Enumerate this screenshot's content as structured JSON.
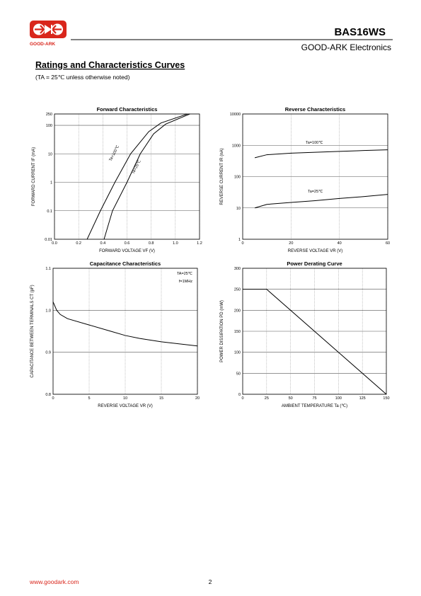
{
  "header": {
    "logo_text": "GOOD-ARK",
    "part_number": "BAS16WS",
    "company": "GOOD-ARK Electronics"
  },
  "section": {
    "title": "Ratings and Characteristics Curves",
    "note": "(TA = 25℃ unless otherwise noted)"
  },
  "footer": {
    "url": "www.goodark.com",
    "page": "2"
  },
  "chart_data": [
    {
      "type": "line",
      "title": "Forward Characteristics",
      "x_label": "FORWARD VOLTAGE  VF  (V)",
      "y_label": "FORWARD CURRENT  IF  (mA)",
      "log_y": true,
      "grid": true,
      "xlim": [
        0,
        1.2
      ],
      "xticks": [
        {
          "value": 0,
          "label": "0.0"
        },
        0.2,
        0.4,
        0.6,
        0.8,
        {
          "value": 1,
          "label": "1.0"
        },
        1.2
      ],
      "ylim": [
        0.01,
        250
      ],
      "yticks": [
        0.01,
        0.1,
        1,
        10,
        100,
        250
      ],
      "series": [
        {
          "name": "Ta=100℃",
          "color": "#000000",
          "x": [
            0.27,
            0.38,
            0.5,
            0.63,
            0.78,
            0.88,
            1.1
          ],
          "values": [
            0.01,
            0.1,
            1,
            10,
            60,
            120,
            250
          ]
        },
        {
          "name": "Ta=25℃",
          "color": "#000000",
          "x": [
            0.41,
            0.48,
            0.6,
            0.71,
            0.82,
            0.92,
            1.12
          ],
          "values": [
            0.01,
            0.1,
            1,
            10,
            50,
            110,
            250
          ]
        }
      ]
    },
    {
      "type": "line",
      "title": "Reverse Characteristics",
      "x_label": "REVERSE VOLTAGE  VR  (V)",
      "y_label": "REVERSE CURRENT  IR  (nA)",
      "log_y": true,
      "grid": true,
      "xlim": [
        0,
        60
      ],
      "xticks": [
        0,
        20,
        40,
        60
      ],
      "ylim": [
        1,
        10000
      ],
      "yticks": [
        1,
        10,
        100,
        1000,
        10000
      ],
      "series": [
        {
          "name": "Ta=100℃",
          "color": "#000000",
          "x": [
            5,
            10,
            20,
            30,
            40,
            50,
            60
          ],
          "values": [
            400,
            500,
            560,
            600,
            640,
            680,
            720
          ]
        },
        {
          "name": "Ta=25℃",
          "color": "#000000",
          "x": [
            5,
            10,
            20,
            30,
            40,
            50,
            60
          ],
          "values": [
            10,
            13,
            15,
            17,
            20,
            23,
            27
          ]
        }
      ]
    },
    {
      "type": "line",
      "title": "Capacitance Characteristics",
      "x_label": "REVERSE VOLTAGE  VR  (V)",
      "y_label": "CAPACITANCE BETWEEN TERMINALS  CT  (pF)",
      "log_y": false,
      "grid": true,
      "annotations": [
        "TA=25℃",
        "f=1MHz"
      ],
      "xlim": [
        0,
        20
      ],
      "xticks": [
        0,
        5,
        10,
        15,
        20
      ],
      "ylim": [
        0.8,
        1.1
      ],
      "yticks": [
        0.8,
        0.9,
        {
          "value": 1,
          "label": "1.0"
        },
        1.1
      ],
      "series": [
        {
          "name": "Capacitance",
          "color": "#000000",
          "x": [
            0,
            0.5,
            1,
            2,
            5,
            8,
            10,
            12,
            15,
            20
          ],
          "values": [
            1.02,
            1.0,
            0.99,
            0.98,
            0.965,
            0.95,
            0.94,
            0.933,
            0.925,
            0.915
          ]
        }
      ]
    },
    {
      "type": "line",
      "title": "Power Derating Curve",
      "x_label": "AMBIENT TEMPERATURE  Ta  (℃)",
      "y_label": "POWER DISSIPATION  PD  (mW)",
      "log_y": false,
      "grid": true,
      "xlim": [
        0,
        150
      ],
      "xticks": [
        0,
        25,
        50,
        75,
        100,
        125,
        150
      ],
      "ylim": [
        0,
        300
      ],
      "yticks": [
        0,
        50,
        100,
        150,
        200,
        250,
        300
      ],
      "series": [
        {
          "name": "Power Dissipation",
          "color": "#000000",
          "x": [
            0,
            25,
            150
          ],
          "values": [
            250,
            250,
            0
          ]
        }
      ]
    }
  ]
}
